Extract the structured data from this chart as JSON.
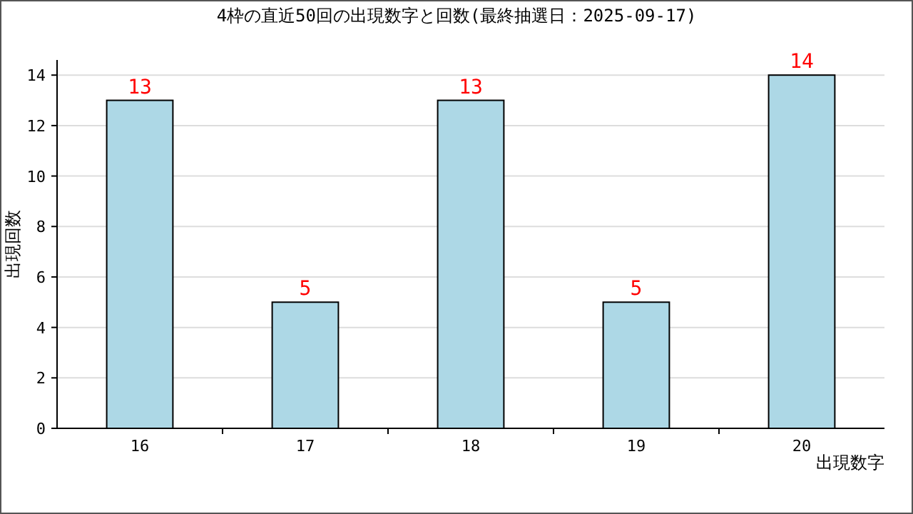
{
  "chart_data": {
    "type": "bar",
    "title": "4枠の直近50回の出現数字と回数(最終抽選日：2025-09-17)",
    "xlabel": "出現数字",
    "ylabel": "出現回数",
    "categories": [
      "16",
      "17",
      "18",
      "19",
      "20"
    ],
    "values": [
      13,
      5,
      13,
      5,
      14
    ],
    "color": "#add8e6",
    "ylim": [
      0,
      14.6
    ],
    "yticks": [
      0,
      2,
      4,
      6,
      8,
      10,
      12,
      14
    ],
    "grid": "y",
    "data_labels": true
  }
}
